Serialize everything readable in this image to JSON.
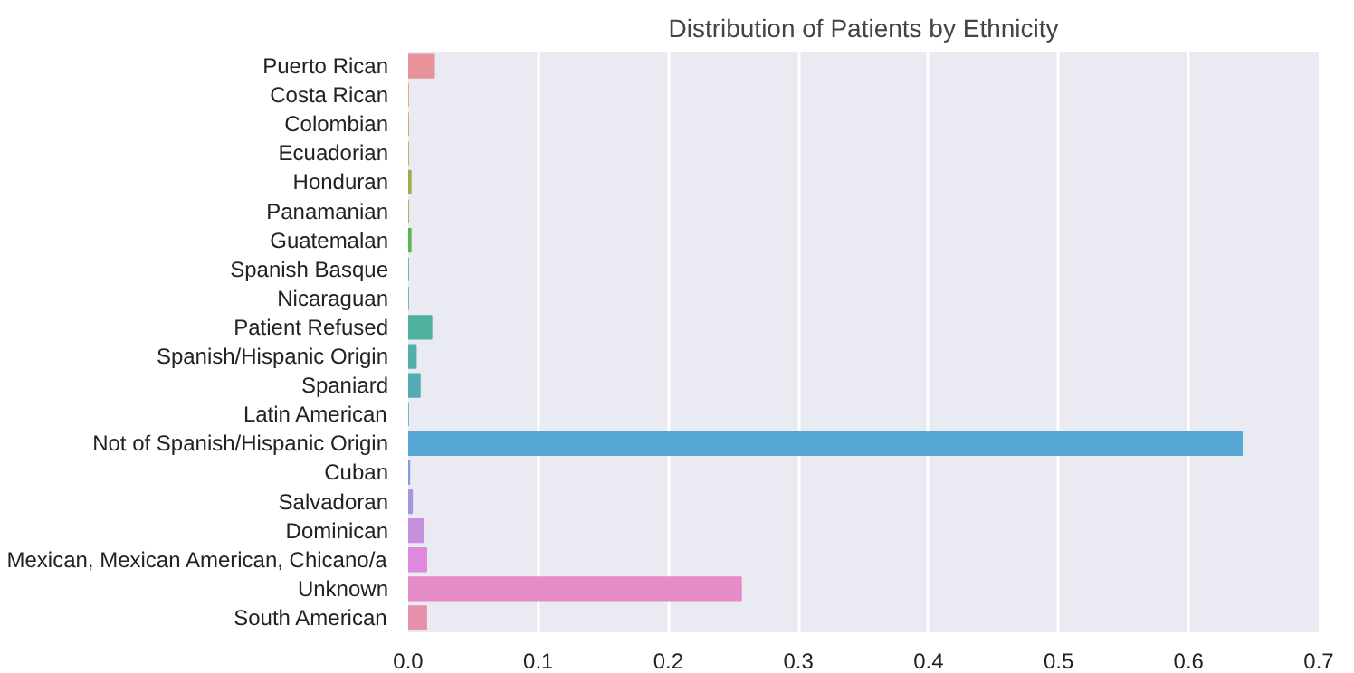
{
  "chart_data": {
    "type": "bar",
    "orientation": "horizontal",
    "title": "Distribution of Patients by Ethnicity",
    "categories": [
      "Puerto Rican",
      "Costa Rican",
      "Colombian",
      "Ecuadorian",
      "Honduran",
      "Panamanian",
      "Guatemalan",
      "Spanish Basque",
      "Nicaraguan",
      "Patient Refused",
      "Spanish/Hispanic Origin",
      "Spaniard",
      "Latin American",
      "Not of Spanish/Hispanic Origin",
      "Cuban",
      "Salvadoran",
      "Dominican",
      "Mexican, Mexican American, Chicano/a",
      "Unknown",
      "South American"
    ],
    "values": [
      0.02,
      0,
      0,
      0,
      0.002,
      0,
      0.002,
      0,
      0,
      0.018,
      0.006,
      0.009,
      0,
      0.641,
      0.001,
      0.003,
      0.012,
      0.014,
      0.256,
      0.014
    ],
    "colors": [
      "#e8939b",
      "#e4966a",
      "#cf9c55",
      "#b9a351",
      "#a2a94f",
      "#87ae4f",
      "#5cb355",
      "#4fb37c",
      "#52b196",
      "#50b09f",
      "#52aea9",
      "#53acb4",
      "#56a9c1",
      "#58a8d6",
      "#7fa0da",
      "#a597db",
      "#c58fdc",
      "#e088dc",
      "#e58cc8",
      "#e690ad"
    ],
    "xlim": [
      0,
      0.7
    ],
    "xticks": [
      {
        "value": 0,
        "label": "0.0"
      },
      0.1,
      0.2,
      0.3,
      0.4,
      0.5,
      0.6,
      0.7
    ],
    "grid": "x"
  }
}
